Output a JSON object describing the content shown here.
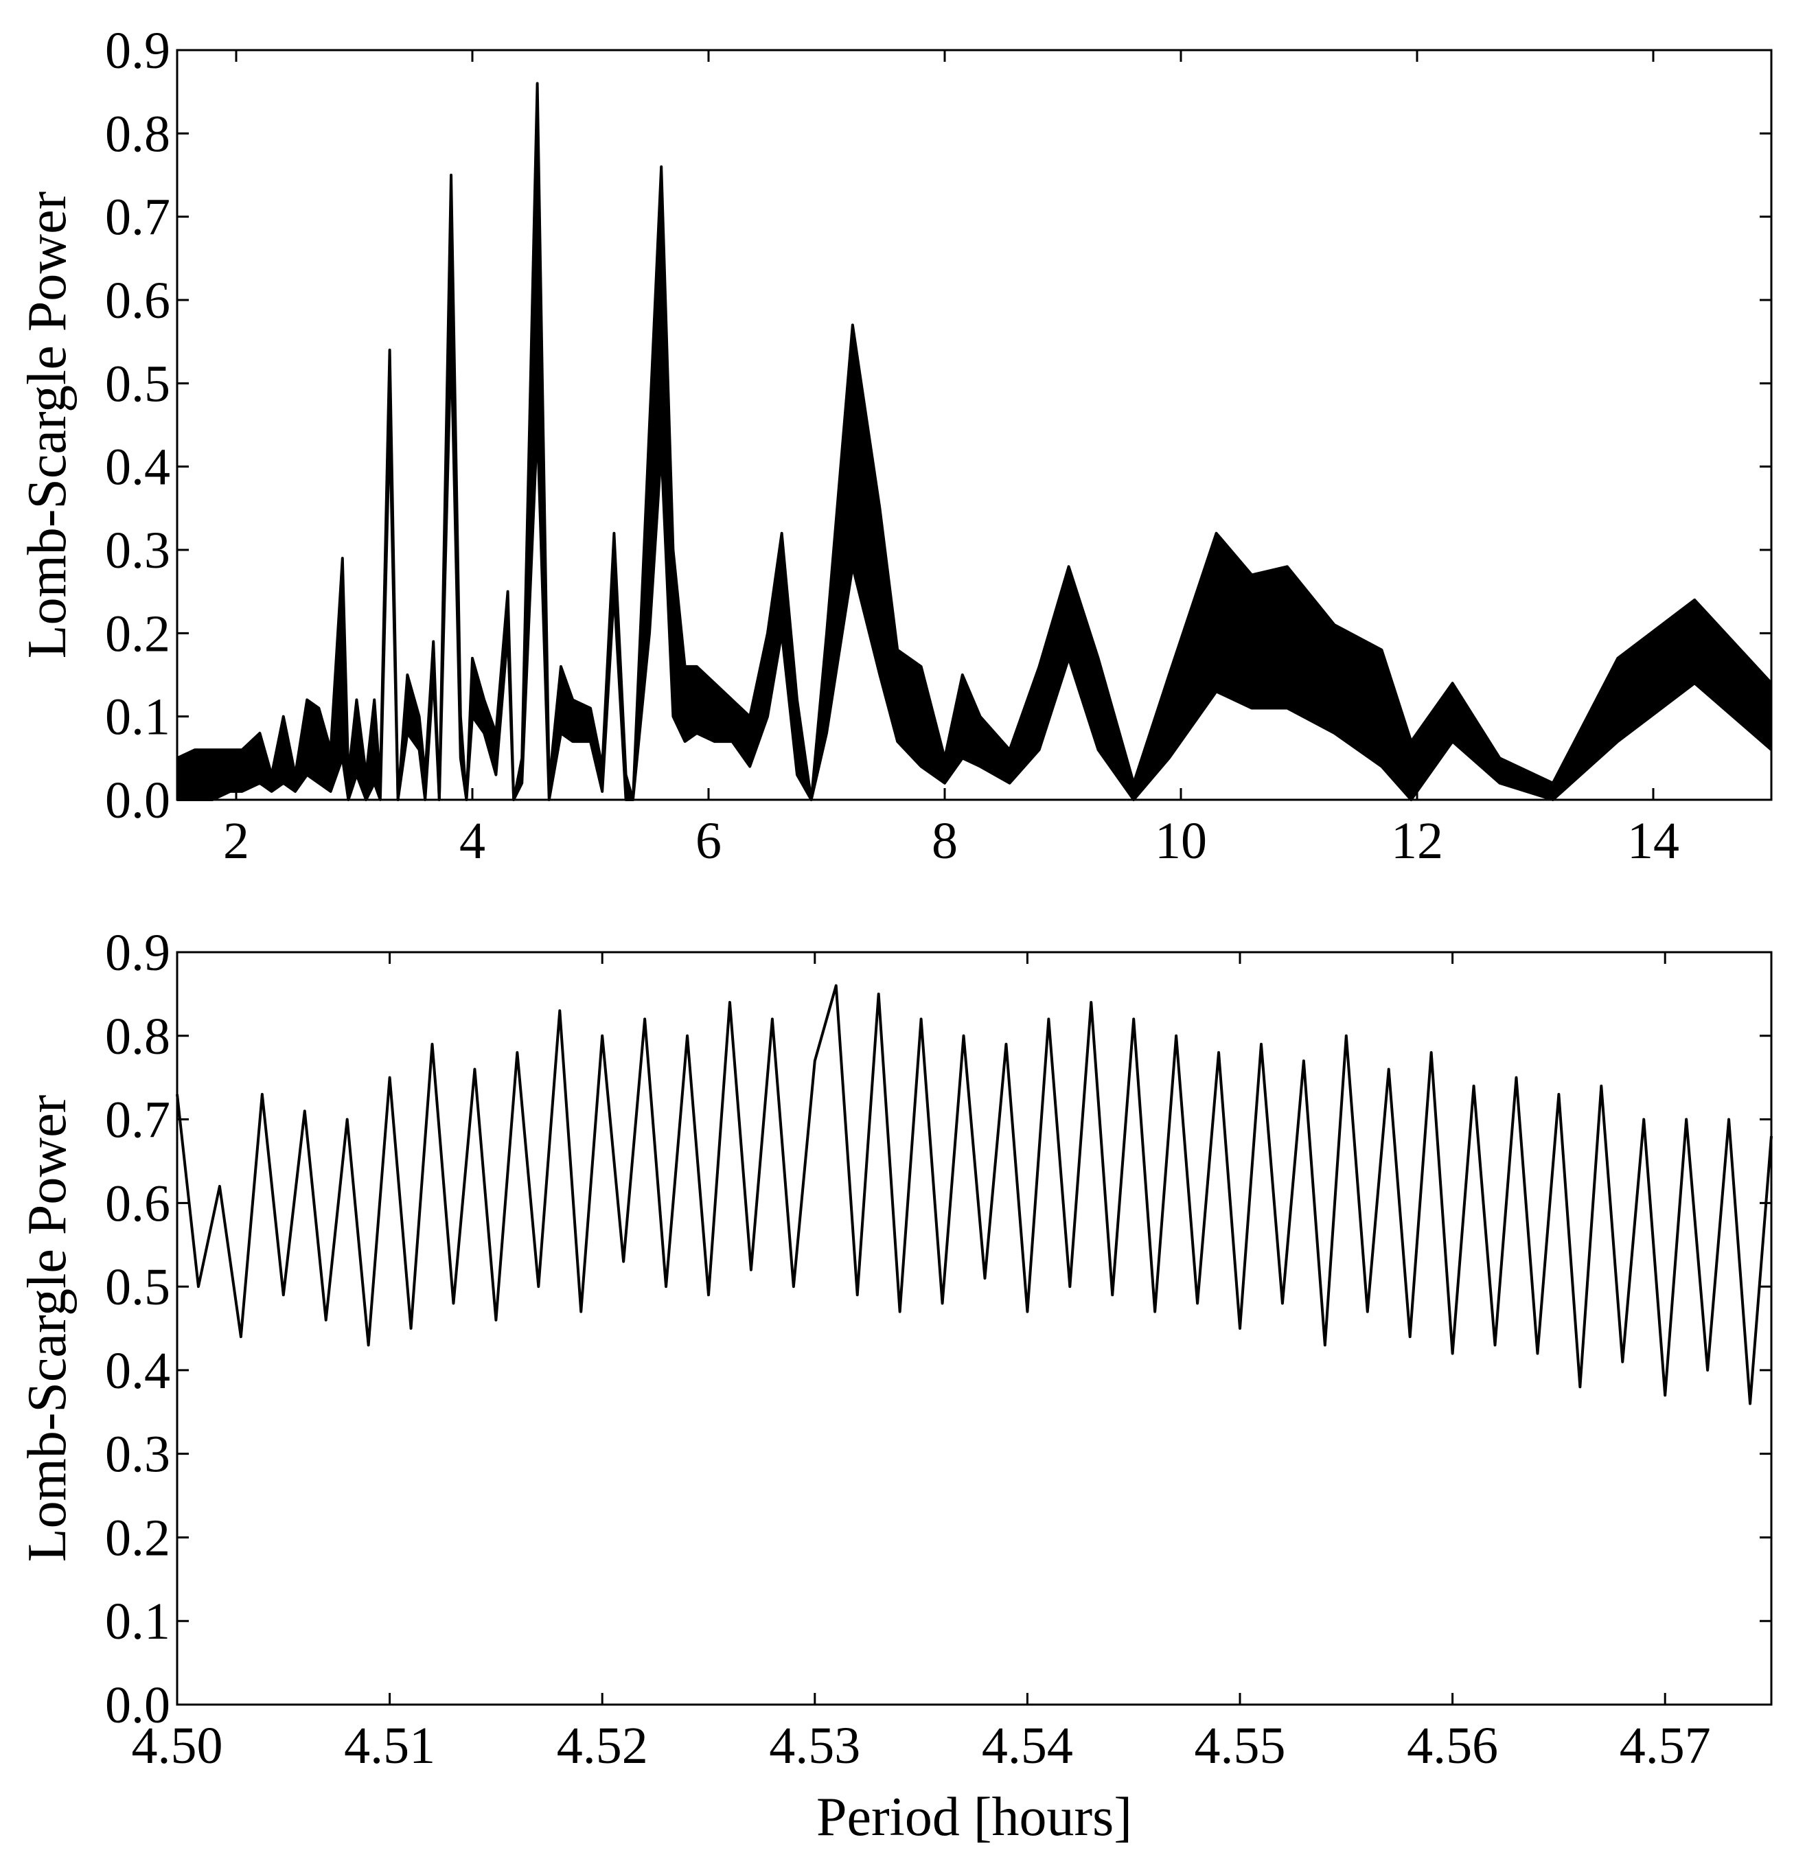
{
  "chart_data": [
    {
      "type": "area",
      "ylabel": "Lomb-Scargle Power",
      "x": [
        1.5,
        1.65,
        1.8,
        1.95,
        2.05,
        2.2,
        2.3,
        2.4,
        2.5,
        2.6,
        2.7,
        2.8,
        2.9,
        2.95,
        3.02,
        3.1,
        3.17,
        3.22,
        3.3,
        3.37,
        3.45,
        3.55,
        3.6,
        3.67,
        3.72,
        3.82,
        3.9,
        3.95,
        4.0,
        4.1,
        4.2,
        4.3,
        4.35,
        4.42,
        4.55,
        4.65,
        4.75,
        4.85,
        5.0,
        5.1,
        5.2,
        5.3,
        5.36,
        5.5,
        5.6,
        5.7,
        5.8,
        5.9,
        6.05,
        6.2,
        6.35,
        6.5,
        6.62,
        6.75,
        6.87,
        7.0,
        7.22,
        7.45,
        7.6,
        7.8,
        8.0,
        8.15,
        8.3,
        8.55,
        8.8,
        9.05,
        9.3,
        9.6,
        9.9,
        10.3,
        10.6,
        10.9,
        11.3,
        11.7,
        11.95,
        12.3,
        12.7,
        13.15,
        13.7,
        14.35,
        15.0
      ],
      "series": [
        {
          "color": "#000000",
          "values": [
            0.05,
            0.06,
            0.06,
            0.06,
            0.06,
            0.08,
            0.03,
            0.1,
            0.03,
            0.12,
            0.11,
            0.06,
            0.29,
            0.03,
            0.12,
            0.03,
            0.12,
            0.02,
            0.54,
            0.0,
            0.15,
            0.1,
            0.03,
            0.19,
            0.0,
            0.75,
            0.1,
            0.0,
            0.17,
            0.12,
            0.08,
            0.25,
            0.0,
            0.05,
            0.86,
            0.02,
            0.16,
            0.12,
            0.11,
            0.04,
            0.32,
            0.03,
            0.0,
            0.45,
            0.76,
            0.3,
            0.16,
            0.16,
            0.14,
            0.12,
            0.1,
            0.2,
            0.32,
            0.12,
            0.0,
            0.2,
            0.57,
            0.35,
            0.18,
            0.16,
            0.05,
            0.15,
            0.1,
            0.06,
            0.16,
            0.28,
            0.17,
            0.02,
            0.15,
            0.32,
            0.27,
            0.28,
            0.21,
            0.18,
            0.07,
            0.14,
            0.05,
            0.02,
            0.17,
            0.24,
            0.14
          ]
        },
        {
          "color": "#000000",
          "values": [
            0.0,
            0.0,
            0.0,
            0.01,
            0.01,
            0.02,
            0.01,
            0.02,
            0.01,
            0.03,
            0.02,
            0.01,
            0.05,
            0.0,
            0.03,
            0.0,
            0.02,
            0.0,
            0.45,
            0.0,
            0.08,
            0.06,
            0.0,
            0.15,
            0.0,
            0.55,
            0.05,
            0.0,
            0.1,
            0.08,
            0.03,
            0.2,
            0.0,
            0.02,
            0.45,
            0.0,
            0.08,
            0.07,
            0.07,
            0.01,
            0.25,
            0.0,
            0.0,
            0.2,
            0.42,
            0.1,
            0.07,
            0.08,
            0.07,
            0.07,
            0.04,
            0.1,
            0.2,
            0.03,
            0.0,
            0.08,
            0.28,
            0.15,
            0.07,
            0.04,
            0.02,
            0.05,
            0.04,
            0.02,
            0.06,
            0.17,
            0.06,
            0.0,
            0.05,
            0.13,
            0.11,
            0.11,
            0.08,
            0.04,
            0.0,
            0.07,
            0.02,
            0.0,
            0.07,
            0.14,
            0.06
          ]
        }
      ],
      "xlim": [
        1.5,
        15
      ],
      "xticks": [
        2,
        4,
        6,
        8,
        10,
        12,
        14
      ],
      "ylim": [
        0,
        0.9
      ],
      "yticks": [
        {
          "value": 0,
          "label": "0.0"
        },
        0.1,
        0.2,
        0.3,
        0.4,
        0.5,
        0.6,
        0.7,
        0.8,
        0.9
      ]
    },
    {
      "type": "line",
      "ylabel": "Lomb-Scargle Power",
      "xlabel": "Period [hours]",
      "x": [
        4.5,
        4.501,
        4.502,
        4.503,
        4.504,
        4.505,
        4.506,
        4.507,
        4.508,
        4.509,
        4.51,
        4.511,
        4.512,
        4.513,
        4.514,
        4.515,
        4.516,
        4.517,
        4.518,
        4.519,
        4.52,
        4.521,
        4.522,
        4.523,
        4.524,
        4.525,
        4.526,
        4.527,
        4.528,
        4.529,
        4.53,
        4.531,
        4.532,
        4.533,
        4.534,
        4.535,
        4.536,
        4.537,
        4.538,
        4.539,
        4.54,
        4.541,
        4.542,
        4.543,
        4.544,
        4.545,
        4.546,
        4.547,
        4.548,
        4.549,
        4.55,
        4.551,
        4.552,
        4.553,
        4.554,
        4.555,
        4.556,
        4.557,
        4.558,
        4.559,
        4.56,
        4.561,
        4.562,
        4.563,
        4.564,
        4.565,
        4.566,
        4.567,
        4.568,
        4.569,
        4.57,
        4.571,
        4.572,
        4.573,
        4.574,
        4.575
      ],
      "series": [
        {
          "color": "#000000",
          "values": [
            0.73,
            0.5,
            0.62,
            0.44,
            0.73,
            0.49,
            0.71,
            0.46,
            0.7,
            0.43,
            0.75,
            0.45,
            0.79,
            0.48,
            0.76,
            0.46,
            0.78,
            0.5,
            0.83,
            0.47,
            0.8,
            0.53,
            0.82,
            0.5,
            0.8,
            0.49,
            0.84,
            0.52,
            0.82,
            0.5,
            0.77,
            0.86,
            0.49,
            0.85,
            0.47,
            0.82,
            0.48,
            0.8,
            0.51,
            0.79,
            0.47,
            0.82,
            0.5,
            0.84,
            0.49,
            0.82,
            0.47,
            0.8,
            0.48,
            0.78,
            0.45,
            0.79,
            0.48,
            0.77,
            0.43,
            0.8,
            0.47,
            0.76,
            0.44,
            0.78,
            0.42,
            0.74,
            0.43,
            0.75,
            0.42,
            0.73,
            0.38,
            0.74,
            0.41,
            0.7,
            0.37,
            0.7,
            0.4,
            0.7,
            0.36,
            0.68
          ]
        }
      ],
      "xlim": [
        4.5,
        4.575
      ],
      "xticks": [
        {
          "value": 4.5,
          "label": "4.50"
        },
        4.51,
        4.52,
        4.53,
        4.54,
        4.55,
        4.56,
        4.57
      ],
      "ylim": [
        0,
        0.9
      ],
      "yticks": [
        {
          "value": 0,
          "label": "0.0"
        },
        0.1,
        0.2,
        0.3,
        0.4,
        0.5,
        0.6,
        0.7,
        0.8,
        0.9
      ]
    }
  ]
}
